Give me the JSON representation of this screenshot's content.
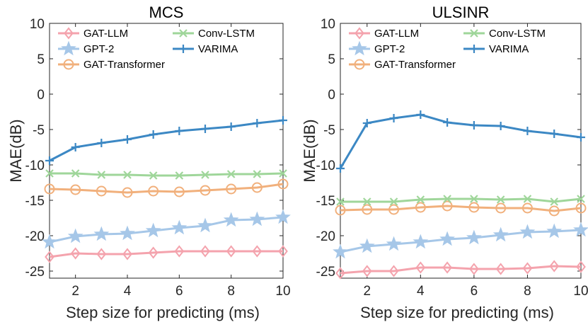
{
  "chart_data": [
    {
      "type": "line",
      "title": "MCS",
      "xlabel": "Step size for predicting (ms)",
      "ylabel": "MAE(dB)",
      "xlim": [
        1,
        10
      ],
      "ylim": [
        -26,
        10
      ],
      "xticks": [
        "2",
        "4",
        "6",
        "8",
        "10"
      ],
      "yticks": [
        "10",
        "5",
        "0",
        "-5",
        "-10",
        "-15",
        "-20",
        "-25"
      ],
      "x": [
        1,
        2,
        3,
        4,
        5,
        6,
        7,
        8,
        9,
        10
      ],
      "series": [
        {
          "name": "GAT-LLM",
          "color": "#f4a3ad",
          "marker": "diamond",
          "values": [
            -23.0,
            -22.5,
            -22.6,
            -22.6,
            -22.4,
            -22.2,
            -22.2,
            -22.2,
            -22.2,
            -22.2
          ]
        },
        {
          "name": "GPT-2",
          "color": "#a6c7e8",
          "marker": "star",
          "values": [
            -20.9,
            -20.1,
            -19.8,
            -19.7,
            -19.3,
            -18.9,
            -18.6,
            -17.8,
            -17.7,
            -17.4
          ]
        },
        {
          "name": "GAT-Transformer",
          "color": "#f1b07c",
          "marker": "circle",
          "values": [
            -13.4,
            -13.5,
            -13.7,
            -13.9,
            -13.7,
            -13.8,
            -13.6,
            -13.4,
            -13.2,
            -12.7
          ]
        },
        {
          "name": "Conv-LSTM",
          "color": "#9fd69a",
          "marker": "x",
          "values": [
            -11.2,
            -11.2,
            -11.4,
            -11.4,
            -11.5,
            -11.5,
            -11.4,
            -11.3,
            -11.3,
            -11.2
          ]
        },
        {
          "name": "VARIMA",
          "color": "#3c88c4",
          "marker": "plus",
          "values": [
            -9.4,
            -7.5,
            -6.9,
            -6.4,
            -5.7,
            -5.2,
            -4.9,
            -4.6,
            -4.1,
            -3.7
          ]
        }
      ]
    },
    {
      "type": "line",
      "title": "ULSINR",
      "xlabel": "Step size for predicting (ms)",
      "ylabel": "MAE(dB)",
      "xlim": [
        1,
        10
      ],
      "ylim": [
        -26,
        10
      ],
      "xticks": [
        "2",
        "4",
        "6",
        "8",
        "10"
      ],
      "yticks": [
        "10",
        "5",
        "0",
        "-5",
        "-10",
        "-15",
        "-20",
        "-25"
      ],
      "x": [
        1,
        2,
        3,
        4,
        5,
        6,
        7,
        8,
        9,
        10
      ],
      "series": [
        {
          "name": "GAT-LLM",
          "color": "#f4a3ad",
          "marker": "diamond",
          "values": [
            -25.3,
            -25.0,
            -25.0,
            -24.5,
            -24.5,
            -24.7,
            -24.7,
            -24.6,
            -24.3,
            -24.4
          ]
        },
        {
          "name": "GPT-2",
          "color": "#a6c7e8",
          "marker": "star",
          "values": [
            -22.3,
            -21.5,
            -21.2,
            -20.9,
            -20.5,
            -20.3,
            -19.9,
            -19.5,
            -19.4,
            -19.2
          ]
        },
        {
          "name": "GAT-Transformer",
          "color": "#f1b07c",
          "marker": "circle",
          "values": [
            -16.4,
            -16.3,
            -16.3,
            -16.0,
            -15.8,
            -16.0,
            -16.1,
            -16.1,
            -16.5,
            -16.1
          ]
        },
        {
          "name": "Conv-LSTM",
          "color": "#9fd69a",
          "marker": "x",
          "values": [
            -15.2,
            -15.2,
            -15.2,
            -14.9,
            -14.8,
            -14.8,
            -14.9,
            -14.8,
            -15.2,
            -14.8
          ]
        },
        {
          "name": "VARIMA",
          "color": "#3c88c4",
          "marker": "plus",
          "values": [
            -10.5,
            -4.1,
            -3.4,
            -2.9,
            -4.0,
            -4.4,
            -4.5,
            -5.2,
            -5.6,
            -6.1
          ]
        }
      ]
    }
  ]
}
